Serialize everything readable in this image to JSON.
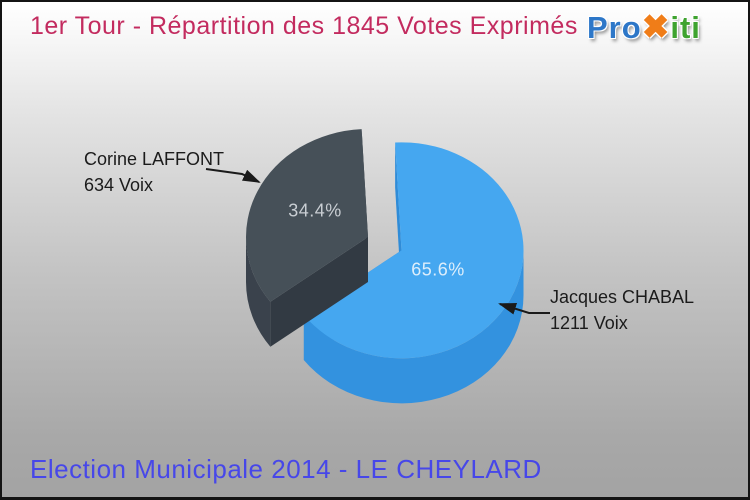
{
  "header": {
    "title": "1er Tour - Répartition des 1845 Votes Exprimés"
  },
  "logo": {
    "name": "Proxiti",
    "parts": [
      {
        "text": "Pro",
        "color": "#2d77c8"
      },
      {
        "text": "✖",
        "color": "#f07d18"
      },
      {
        "text": "iti",
        "color": "#3ea32f"
      }
    ]
  },
  "footer": {
    "text": "Election Municipale 2014 - LE CHEYLARD"
  },
  "chart_data": {
    "type": "pie",
    "style": "3d-exploded",
    "title": "1er Tour - Répartition des 1845 Votes Exprimés",
    "total_votes": 1845,
    "total_votes_unit": "Votes Exprimés",
    "start_angle_deg": -3,
    "legend_position": "callouts",
    "slices": [
      {
        "name": "Jacques CHABAL",
        "votes": 1211,
        "votes_label": "1211 Voix",
        "percent": 65.6,
        "percent_label": "65.6%",
        "color": "#45a7f0",
        "side_color": "#3392df",
        "cut_color": "#2f8cd8",
        "exploded": true
      },
      {
        "name": "Corine LAFFONT",
        "votes": 634,
        "votes_label": "634 Voix",
        "percent": 34.4,
        "percent_label": "34.4%",
        "color": "#465058",
        "side_color": "#3a424c",
        "cut_color": "#323a43",
        "exploded": false
      }
    ]
  }
}
